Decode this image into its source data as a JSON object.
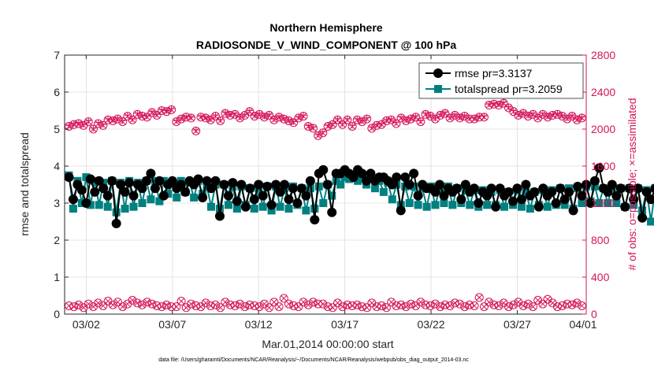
{
  "colors": {
    "rmse": "#000000",
    "spread": "#008080",
    "obs": "#d4145a",
    "axis": "#262626",
    "grid": "#dcdcdc"
  },
  "chart_data": {
    "type": "line",
    "title": "Northern Hemisphere",
    "subtitle": "RADIOSONDE_V_WIND_COMPONENT @ 100 hPa",
    "xlabel": "Mar.01,2014 00:00:00 start",
    "ylabel_left": "rmse and totalspread",
    "ylabel_right": "# of obs: o=possible; ×=assimilated",
    "footnote": "data file: /Users/gharamti/Documents/NCAR/Reanalysis/~/Documents/NCAR/Reanalysis/webpub/obs_diag_output_2014-03.nc",
    "xlim_days": [
      0.75,
      31
    ],
    "x_ticks": [
      {
        "day": 2,
        "label": "03/02"
      },
      {
        "day": 7,
        "label": "03/07"
      },
      {
        "day": 12,
        "label": "03/12"
      },
      {
        "day": 17,
        "label": "03/17"
      },
      {
        "day": 22,
        "label": "03/22"
      },
      {
        "day": 27,
        "label": "03/27"
      },
      {
        "day": 32,
        "label": "04/01"
      }
    ],
    "ylim_left": [
      0,
      7
    ],
    "y_ticks_left": [
      "0",
      "1",
      "2",
      "3",
      "4",
      "5",
      "6",
      "7"
    ],
    "ylim_right": [
      0,
      2800
    ],
    "y_ticks_right": [
      "0",
      "400",
      "800",
      "1200",
      "1600",
      "2000",
      "2400",
      "2800"
    ],
    "legend": {
      "position": "top-right",
      "entries": [
        "rmse pr=3.3137",
        "totalspread pr=3.2059"
      ]
    },
    "series": [
      {
        "name": "rmse",
        "axis": "left",
        "values": [
          3.7,
          3.1,
          3.5,
          3.35,
          3.0,
          3.65,
          3.3,
          3.6,
          3.4,
          3.2,
          3.6,
          2.45,
          3.5,
          3.3,
          3.55,
          3.2,
          3.5,
          3.4,
          3.6,
          3.8,
          3.4,
          3.6,
          3.2,
          3.5,
          3.6,
          3.4,
          3.5,
          3.3,
          3.6,
          3.5,
          3.65,
          3.15,
          3.6,
          3.4,
          3.6,
          2.65,
          3.5,
          3.2,
          3.55,
          3.05,
          3.5,
          2.9,
          3.4,
          3.1,
          3.5,
          3.2,
          3.45,
          2.95,
          3.5,
          3.3,
          3.5,
          3.1,
          3.4,
          3.0,
          3.4,
          3.2,
          3.6,
          2.55,
          3.8,
          3.9,
          3.5,
          2.75,
          3.8,
          3.8,
          3.9,
          3.8,
          3.7,
          3.9,
          3.8,
          3.6,
          3.8,
          3.6,
          3.7,
          3.7,
          3.6,
          3.5,
          3.7,
          2.8,
          3.7,
          3.5,
          3.8,
          3.2,
          3.5,
          3.4,
          3.4,
          3.3,
          3.5,
          3.2,
          3.4,
          3.3,
          3.4,
          3.1,
          3.5,
          3.3,
          3.4,
          3.0,
          3.3,
          3.2,
          3.4,
          2.9,
          3.4,
          3.2,
          3.3,
          3.05,
          3.4,
          3.1,
          3.5,
          3.2,
          3.3,
          2.9,
          3.4,
          3.2,
          3.3,
          3.0,
          3.4,
          3.1,
          3.3,
          2.8,
          3.45,
          3.2,
          3.5,
          3.0,
          3.6,
          3.95,
          3.4,
          3.3,
          3.5,
          3.2,
          3.4,
          2.9,
          3.4,
          3.1,
          3.4,
          2.6,
          3.3,
          3.1,
          3.4,
          3.1,
          3.4,
          3.0,
          3.4,
          3.05
        ],
        "x_start_day": 1.0,
        "step_days": 0.25
      },
      {
        "name": "totalspread",
        "axis": "left",
        "values": [
          3.75,
          2.85,
          3.6,
          3.0,
          3.7,
          2.95,
          3.6,
          2.95,
          3.55,
          2.9,
          3.6,
          2.75,
          3.55,
          2.85,
          3.6,
          2.9,
          3.55,
          3.0,
          3.6,
          3.1,
          3.6,
          3.05,
          3.6,
          3.25,
          3.55,
          3.15,
          3.6,
          3.3,
          3.55,
          3.15,
          3.6,
          3.25,
          3.45,
          2.9,
          3.5,
          2.85,
          3.5,
          2.95,
          3.45,
          2.85,
          3.45,
          2.95,
          3.4,
          2.85,
          3.4,
          2.9,
          3.45,
          2.8,
          3.45,
          2.9,
          3.4,
          2.85,
          3.45,
          2.95,
          3.4,
          2.8,
          3.4,
          2.85,
          3.45,
          3.0,
          3.5,
          3.2,
          3.6,
          3.5,
          3.7,
          3.65,
          3.75,
          3.6,
          3.75,
          3.5,
          3.7,
          3.4,
          3.6,
          3.3,
          3.55,
          3.1,
          3.5,
          2.95,
          3.45,
          3.0,
          3.45,
          2.95,
          3.4,
          2.9,
          3.45,
          2.95,
          3.4,
          3.0,
          3.45,
          2.95,
          3.4,
          3.0,
          3.35,
          2.95,
          3.35,
          2.9,
          3.35,
          2.95,
          3.3,
          2.95,
          3.35,
          2.9,
          3.3,
          2.95,
          3.35,
          2.9,
          3.3,
          2.85,
          3.3,
          2.95,
          3.35,
          2.9,
          3.35,
          2.95,
          3.4,
          2.95,
          3.4,
          2.85,
          3.4,
          3.0,
          3.45,
          3.05,
          3.45,
          3.0,
          3.4,
          3.0,
          3.45,
          3.0,
          3.4,
          2.9,
          3.4,
          2.95,
          3.4,
          2.8,
          3.35,
          2.5,
          3.4,
          2.85,
          3.4,
          2.95,
          3.4,
          3.3,
          2.95
        ],
        "x_start_day": 1.0,
        "step_days": 0.25
      },
      {
        "name": "obs possible",
        "axis": "right",
        "marker": "circle-cross",
        "values": [
          2030,
          2050,
          2060,
          2040,
          2080,
          2000,
          2060,
          2040,
          2100,
          2090,
          2110,
          2080,
          2140,
          2100,
          2160,
          2140,
          2130,
          2180,
          2150,
          2200,
          2190,
          2210,
          2080,
          2110,
          2130,
          2120,
          1980,
          2130,
          2120,
          2100,
          2140,
          2090,
          2170,
          2150,
          2160,
          2120,
          2150,
          2190,
          2140,
          2160,
          2130,
          2150,
          2100,
          2130,
          2110,
          2090,
          2070,
          2120,
          2140,
          2030,
          2010,
          1930,
          1960,
          2030,
          2050,
          2100,
          2050,
          2100,
          2030,
          2100,
          2080,
          2110,
          2010,
          2040,
          2050,
          2090,
          2100,
          2060,
          2120,
          2090,
          2110,
          2130,
          2080,
          2160,
          2140,
          2110,
          2150,
          2170,
          2120,
          2150,
          2120,
          2140,
          2110,
          2110,
          2130,
          2130,
          2260,
          2270,
          2260,
          2280,
          2230,
          2190,
          2150,
          2170,
          2140,
          2160,
          2120,
          2160,
          2130,
          2150,
          2160,
          2140,
          2110,
          2140,
          2100,
          2120,
          2100
        ],
        "x_start_day": 1.0,
        "step_days": 0.2833
      },
      {
        "name": "obs assimilated",
        "axis": "right",
        "marker": "cross",
        "values": [
          2040,
          2060,
          2070,
          2050,
          2090,
          2010,
          2070,
          2050,
          2110,
          2100,
          2120,
          2090,
          2150,
          2110,
          2170,
          2150,
          2140,
          2190,
          2160,
          2210,
          2200,
          2220,
          2090,
          2120,
          2140,
          2130,
          1990,
          2140,
          2130,
          2110,
          2150,
          2100,
          2180,
          2160,
          2170,
          2130,
          2160,
          2200,
          2150,
          2170,
          2140,
          2160,
          2110,
          2140,
          2120,
          2100,
          2080,
          2130,
          2150,
          2040,
          2020,
          1940,
          1970,
          2040,
          2060,
          2110,
          2060,
          2110,
          2040,
          2110,
          2090,
          2120,
          2020,
          2050,
          2060,
          2100,
          2110,
          2070,
          2130,
          2100,
          2120,
          2140,
          2090,
          2170,
          2150,
          2120,
          2160,
          2180,
          2130,
          2160,
          2130,
          2150,
          2120,
          2120,
          2140,
          2140,
          2270,
          2280,
          2270,
          2290,
          2240,
          2200,
          2160,
          2180,
          2150,
          2170,
          2130,
          2170,
          2140,
          2160,
          2170,
          2150,
          2120,
          2150,
          2110,
          2130,
          2110
        ],
        "x_start_day": 1.0,
        "step_days": 0.2833
      },
      {
        "name": "obs possible (low)",
        "axis": "right",
        "marker": "circle-cross",
        "values": [
          90,
          80,
          100,
          70,
          110,
          80,
          120,
          90,
          140,
          100,
          130,
          80,
          110,
          150,
          120,
          100,
          130,
          110,
          90,
          80,
          100,
          80,
          80,
          140,
          70,
          110,
          90,
          80,
          120,
          90,
          100,
          70,
          130,
          100,
          90,
          110,
          80,
          100,
          90,
          80,
          110,
          70,
          130,
          80,
          170,
          110,
          90,
          80,
          130,
          100,
          130,
          110,
          110,
          80,
          70,
          120,
          80,
          100,
          90,
          100,
          80,
          70,
          120,
          80,
          90,
          70,
          130,
          90,
          100,
          80,
          110,
          90,
          130,
          100,
          90,
          110,
          80,
          100,
          90,
          120,
          110,
          80,
          100,
          90,
          180,
          80,
          130,
          100,
          90,
          120,
          80,
          100,
          130,
          90,
          110,
          80,
          150,
          110,
          160,
          120,
          80,
          90,
          110,
          100,
          120,
          90,
          0
        ],
        "x_start_day": 1.0,
        "step_days": 0.2833
      }
    ]
  }
}
